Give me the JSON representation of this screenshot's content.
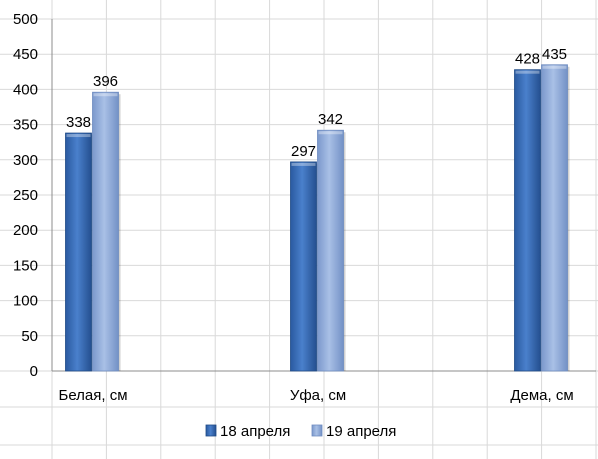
{
  "chart_data": {
    "type": "bar",
    "categories": [
      "Белая, см",
      "Уфа, см",
      "Дема, см"
    ],
    "series": [
      {
        "name": "18 апреля",
        "values": [
          338,
          297,
          428
        ],
        "color": "#3a6cb5"
      },
      {
        "name": "19 апреля",
        "values": [
          396,
          342,
          435
        ],
        "color": "#8faadc"
      }
    ],
    "y_ticks": [
      "0",
      "50",
      "100",
      "150",
      "200",
      "250",
      "300",
      "350",
      "400",
      "450",
      "500"
    ],
    "ylim": [
      0,
      500
    ],
    "grid": true,
    "legend_position": "bottom",
    "data_labels": true
  }
}
